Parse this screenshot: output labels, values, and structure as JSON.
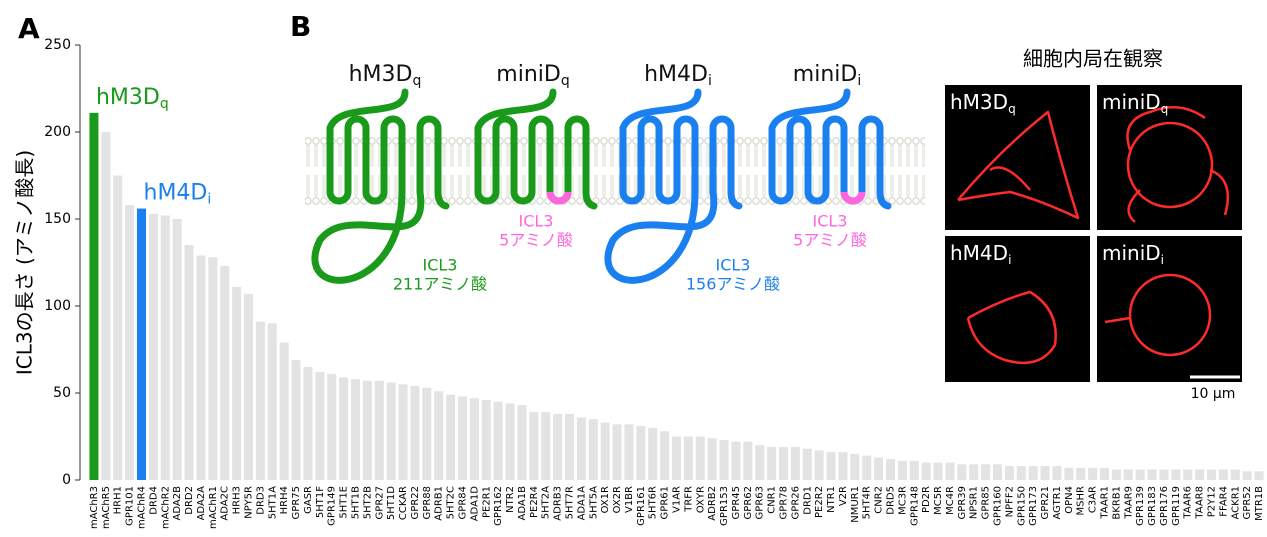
{
  "panel_labels": [
    "A",
    "B"
  ],
  "chart_data": {
    "type": "bar",
    "y_label": "ICL3の長さ (アミノ酸長)",
    "categories": [
      "mAChR3",
      "mAChR5",
      "HRH1",
      "GPR101",
      "mAChR4",
      "DRD4",
      "mAChR2",
      "ADA2B",
      "DRD2",
      "ADA2A",
      "mAChR1",
      "ADA2C",
      "HRH3",
      "NPY5R",
      "DRD3",
      "5HT1A",
      "HRH4",
      "GPR75",
      "GASR",
      "5HT1F",
      "GPR149",
      "5HT1E",
      "5HT1B",
      "5HT2B",
      "GPR27",
      "5HT1D",
      "CCKAR",
      "GPR22",
      "GPR88",
      "ADRB1",
      "5HT2C",
      "GPR84",
      "ADA1D",
      "PE2R1",
      "GPR162",
      "NTR2",
      "ADA1B",
      "PE2R4",
      "5HT2A",
      "ADRB3",
      "5HT7R",
      "ADA1A",
      "5HT5A",
      "OX1R",
      "OX2R",
      "V1BR",
      "GPR161",
      "5HT6R",
      "GPR61",
      "V1AR",
      "TRFR",
      "OXYR",
      "ADRB2",
      "GPR153",
      "GPR45",
      "GPR62",
      "GPR63",
      "CNR1",
      "GPR78",
      "GPR26",
      "DRD1",
      "PE2R2",
      "NTR1",
      "V2R",
      "NMUR1",
      "5HT4R",
      "CNR2",
      "DRD5",
      "MC3R",
      "GPR148",
      "PD2R",
      "MC5R",
      "MC4R",
      "GPR39",
      "NPSR1",
      "GPR85",
      "GPR160",
      "NPFF2",
      "GPR150",
      "GPR173",
      "GPR21",
      "AGTR1",
      "OPN4",
      "MSHR",
      "C3AR",
      "TAAR1",
      "BKRB1",
      "TAAR9",
      "GPR139",
      "GPR183",
      "GPR176",
      "GPR119",
      "TAAR6",
      "TAAR8",
      "P2Y12",
      "FFAR4",
      "ACKR1",
      "GPR52",
      "MTR1B"
    ],
    "values": [
      211,
      200,
      175,
      158,
      156,
      153,
      152,
      150,
      135,
      129,
      128,
      123,
      111,
      107,
      91,
      90,
      79,
      69,
      65,
      62,
      61,
      59,
      58,
      57,
      57,
      56,
      55,
      54,
      53,
      51,
      49,
      48,
      47,
      46,
      45,
      44,
      43,
      39,
      39,
      38,
      38,
      36,
      35,
      33,
      32,
      32,
      31,
      30,
      28,
      25,
      25,
      25,
      24,
      23,
      22,
      22,
      20,
      19,
      19,
      19,
      18,
      17,
      16,
      16,
      15,
      14,
      13,
      12,
      11,
      11,
      10,
      10,
      10,
      9,
      9,
      9,
      9,
      8,
      8,
      8,
      8,
      8,
      7,
      7,
      7,
      7,
      6,
      6,
      6,
      6,
      6,
      6,
      6,
      6,
      6,
      6,
      6,
      5,
      5
    ],
    "color": "#e3e3e3",
    "annotations": [
      {
        "text": "hM3D",
        "sub": "q",
        "index": 0,
        "color": "#1a9a1a"
      },
      {
        "text": "hM4D",
        "sub": "i",
        "index": 4,
        "color": "#1a80f0"
      }
    ],
    "ylim": [
      0,
      250
    ],
    "yticks": [
      0,
      50,
      100,
      150,
      200,
      250
    ]
  },
  "diagram": {
    "receptors": [
      {
        "name": {
          "text": "hM3D",
          "sub": "q"
        },
        "loop": "ICL3",
        "length": "211アミノ酸",
        "color": "#1a9a1a",
        "long": true
      },
      {
        "name": {
          "text": "miniD",
          "sub": "q"
        },
        "loop": "ICL3",
        "length": "5アミノ酸",
        "color": "#1a9a1a",
        "long": false
      },
      {
        "name": {
          "text": "hM4D",
          "sub": "i"
        },
        "loop": "ICL3",
        "length": "156アミノ酸",
        "color": "#1a80f0",
        "long": true
      },
      {
        "name": {
          "text": "miniD",
          "sub": "i"
        },
        "loop": "ICL3",
        "length": "5アミノ酸",
        "color": "#1a80f0",
        "long": false
      }
    ]
  },
  "microscopy": {
    "title": "細胞内局在観察",
    "images": [
      {
        "text": "hM3D",
        "sub": "q"
      },
      {
        "text": "miniD",
        "sub": "q"
      },
      {
        "text": "hM4D",
        "sub": "i"
      },
      {
        "text": "miniD",
        "sub": "i"
      }
    ],
    "scale_bar": "10 µm"
  }
}
